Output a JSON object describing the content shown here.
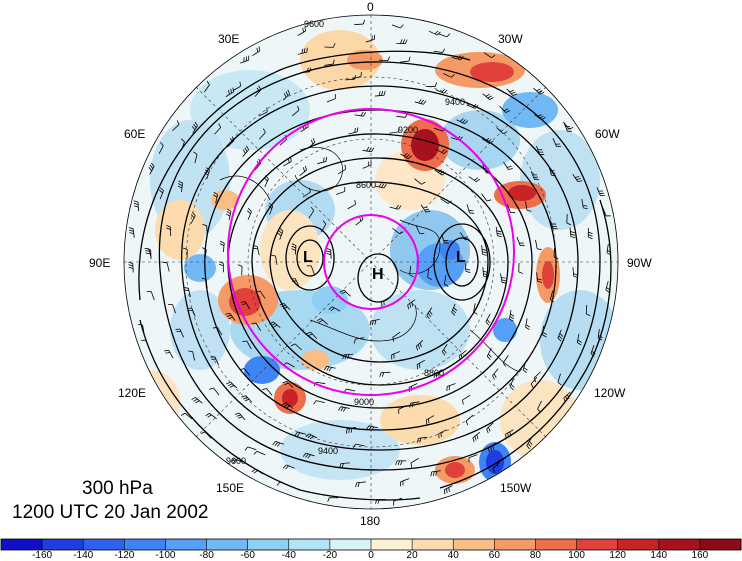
{
  "map": {
    "pressure_level": "300 hPa",
    "valid_time": "1200 UTC 20 Jan 2002",
    "longitude_labels": {
      "top": "0",
      "top_right": "30W",
      "upper_right": "60W",
      "right": "90W",
      "lower_right": "120W",
      "bottom_right": "150W",
      "bottom": "180",
      "bottom_left": "150E",
      "lower_left": "120E",
      "left": "90E",
      "upper_left": "60E",
      "top_left": "30E"
    },
    "pressure_centers": {
      "high": "H",
      "low_east": "L",
      "low_west": "L"
    },
    "height_contour_labels": [
      "9600",
      "9400",
      "9200",
      "8800",
      "8600",
      "9000",
      "9400",
      "9600"
    ],
    "colorbar": {
      "ticks": [
        "-160",
        "-140",
        "-120",
        "-100",
        "-80",
        "-60",
        "-40",
        "-20",
        "0",
        "20",
        "40",
        "60",
        "80",
        "100",
        "120",
        "140",
        "160"
      ],
      "colors": [
        "#1010c8",
        "#1e3ee0",
        "#2d61ee",
        "#3e84f4",
        "#55a0f6",
        "#70b9f5",
        "#8fcff4",
        "#b3e3f6",
        "#d8f3f8",
        "#fdf3d4",
        "#fcdcae",
        "#f9bd86",
        "#f59a66",
        "#ee6d4a",
        "#e0413a",
        "#c82428",
        "#a8101e",
        "#8b0a14"
      ]
    },
    "colors": {
      "circle": "#ee00ee",
      "contour": "#000000",
      "barb": "#000000"
    }
  }
}
